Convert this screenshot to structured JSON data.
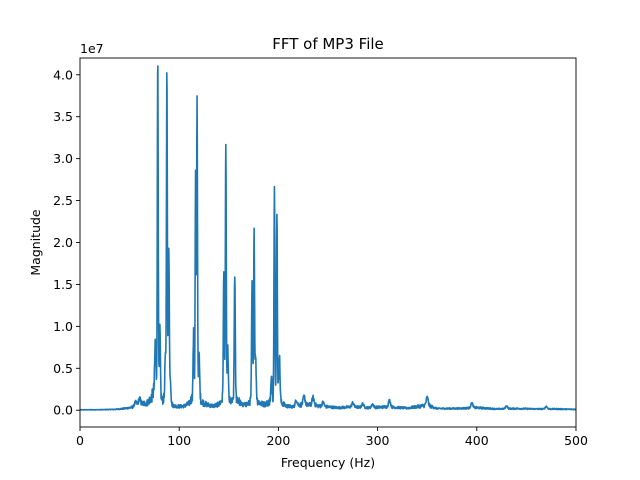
{
  "chart_data": {
    "type": "line",
    "title": "FFT of MP3 File",
    "xlabel": "Frequency (Hz)",
    "ylabel": "Magnitude",
    "y_multiplier_label": "1e7",
    "y_multiplier": 10000000,
    "xlim": [
      0,
      500
    ],
    "ylim": [
      -2000000,
      42000000
    ],
    "x_ticks": [
      0,
      100,
      200,
      300,
      400,
      500
    ],
    "x_tick_labels": [
      "0",
      "100",
      "200",
      "300",
      "400",
      "500"
    ],
    "y_ticks": [
      0,
      5000000,
      10000000,
      15000000,
      20000000,
      25000000,
      30000000,
      35000000,
      40000000
    ],
    "y_tick_labels": [
      "0.0",
      "0.5",
      "1.0",
      "1.5",
      "2.0",
      "2.5",
      "3.0",
      "3.5",
      "4.0"
    ],
    "grid": false,
    "legend": "none",
    "series": [
      {
        "color": "#1f77b4",
        "baseline": [
          [
            0,
            50000
          ],
          [
            20,
            60000
          ],
          [
            35,
            100000
          ],
          [
            45,
            200000
          ],
          [
            55,
            400000
          ],
          [
            60,
            700000
          ],
          [
            68,
            900000
          ],
          [
            72,
            1500000
          ],
          [
            75,
            2500000
          ],
          [
            80,
            2000000
          ],
          [
            83,
            1200000
          ],
          [
            86,
            1500000
          ],
          [
            90,
            900000
          ],
          [
            95,
            500000
          ],
          [
            100,
            450000
          ],
          [
            105,
            500000
          ],
          [
            110,
            800000
          ],
          [
            113,
            1500000
          ],
          [
            116,
            2500000
          ],
          [
            120,
            1500000
          ],
          [
            125,
            800000
          ],
          [
            130,
            600000
          ],
          [
            135,
            500000
          ],
          [
            140,
            700000
          ],
          [
            145,
            1500000
          ],
          [
            150,
            1200000
          ],
          [
            153,
            1000000
          ],
          [
            158,
            1500000
          ],
          [
            162,
            800000
          ],
          [
            165,
            600000
          ],
          [
            170,
            800000
          ],
          [
            174,
            1500000
          ],
          [
            178,
            1200000
          ],
          [
            182,
            800000
          ],
          [
            186,
            700000
          ],
          [
            190,
            900000
          ],
          [
            195,
            1500000
          ],
          [
            200,
            1800000
          ],
          [
            203,
            900000
          ],
          [
            208,
            500000
          ],
          [
            215,
            400000
          ],
          [
            220,
            600000
          ],
          [
            225,
            700000
          ],
          [
            230,
            600000
          ],
          [
            235,
            700000
          ],
          [
            240,
            500000
          ],
          [
            250,
            400000
          ],
          [
            260,
            300000
          ],
          [
            275,
            400000
          ],
          [
            290,
            300000
          ],
          [
            310,
            400000
          ],
          [
            330,
            250000
          ],
          [
            350,
            600000
          ],
          [
            360,
            200000
          ],
          [
            380,
            200000
          ],
          [
            400,
            300000
          ],
          [
            420,
            150000
          ],
          [
            440,
            200000
          ],
          [
            460,
            150000
          ],
          [
            480,
            150000
          ],
          [
            500,
            100000
          ]
        ],
        "peaks": [
          [
            56,
            500000,
            1.2
          ],
          [
            60,
            700000,
            1.0
          ],
          [
            76,
            6000000,
            0.6
          ],
          [
            78.4,
            40200000,
            0.45
          ],
          [
            80.5,
            8000000,
            0.5
          ],
          [
            86,
            5000000,
            0.5
          ],
          [
            87.6,
            39600000,
            0.45
          ],
          [
            89.5,
            18500000,
            0.5
          ],
          [
            91,
            3000000,
            0.6
          ],
          [
            114.5,
            7000000,
            0.5
          ],
          [
            116.5,
            25600000,
            0.4
          ],
          [
            118,
            35000000,
            0.45
          ],
          [
            120,
            5000000,
            0.6
          ],
          [
            145,
            15000000,
            0.5
          ],
          [
            147,
            30700000,
            0.45
          ],
          [
            149,
            6000000,
            0.5
          ],
          [
            156,
            15000000,
            0.5
          ],
          [
            173.5,
            14000000,
            0.5
          ],
          [
            175.5,
            20100000,
            0.45
          ],
          [
            177,
            5000000,
            0.6
          ],
          [
            193,
            2500000,
            0.6
          ],
          [
            196,
            25800000,
            0.45
          ],
          [
            198.5,
            22300000,
            0.45
          ],
          [
            201,
            5000000,
            0.6
          ],
          [
            218,
            700000,
            1.0
          ],
          [
            226,
            900000,
            1.0
          ],
          [
            235,
            800000,
            1.0
          ],
          [
            245,
            500000,
            1.0
          ],
          [
            275,
            500000,
            1.0
          ],
          [
            285,
            450000,
            1.0
          ],
          [
            295,
            400000,
            1.0
          ],
          [
            312,
            800000,
            1.0
          ],
          [
            350,
            900000,
            1.0
          ],
          [
            395,
            600000,
            1.0
          ],
          [
            430,
            350000,
            1.0
          ],
          [
            470,
            300000,
            1.0
          ]
        ]
      }
    ]
  }
}
